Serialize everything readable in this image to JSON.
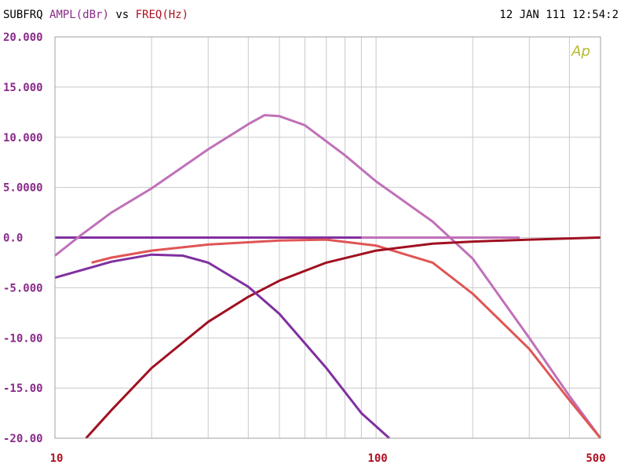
{
  "chart_data": {
    "type": "line",
    "title": [
      "SUBFRQ",
      "AMPL(dBr)",
      "vs",
      "FREQ(Hz)"
    ],
    "timestamp": "12 JAN 111 12:54:2",
    "logo": "Ap",
    "xlog": true,
    "grid": true,
    "xlim": [
      10,
      500
    ],
    "xticks": [
      10,
      100,
      500
    ],
    "xminor": [
      20,
      30,
      40,
      50,
      60,
      70,
      80,
      90,
      200,
      300,
      400
    ],
    "ylim": [
      -20,
      20
    ],
    "yticks": [
      {
        "value": 20,
        "label": "20.000"
      },
      {
        "value": 15,
        "label": "15.000"
      },
      {
        "value": 10,
        "label": "10.000"
      },
      {
        "value": 5,
        "label": "5.0000"
      },
      {
        "value": 0,
        "label": "0.0"
      },
      {
        "value": -5,
        "label": "-5.000"
      },
      {
        "value": -10,
        "label": "-10.00"
      },
      {
        "value": -15,
        "label": "-15.00"
      },
      {
        "value": -20,
        "label": "-20.00"
      }
    ],
    "series": [
      {
        "color": "#8030a0",
        "x": [
          10,
          90
        ],
        "values": [
          0,
          0
        ]
      },
      {
        "color": "#c070b8",
        "x": [
          90,
          280
        ],
        "values": [
          0,
          0
        ]
      },
      {
        "color": "#c070b8",
        "x": [
          10,
          12,
          15,
          20,
          30,
          40,
          45,
          50,
          60,
          80,
          100,
          150,
          200,
          300,
          400,
          500
        ],
        "values": [
          -1.8,
          0.2,
          2.5,
          4.9,
          8.8,
          11.3,
          12.2,
          12.1,
          11.2,
          8.2,
          5.6,
          1.6,
          -2.1,
          -10,
          -15.8,
          -20
        ]
      },
      {
        "color": "#e05555",
        "x": [
          13,
          15,
          20,
          30,
          50,
          70,
          100,
          150,
          200,
          300,
          400,
          500
        ],
        "values": [
          -2.5,
          -2,
          -1.3,
          -0.7,
          -0.3,
          -0.2,
          -0.8,
          -2.5,
          -5.6,
          -11.1,
          -16.2,
          -20
        ]
      },
      {
        "color": "#a01020",
        "x": [
          12.5,
          15,
          20,
          30,
          40,
          50,
          70,
          100,
          150,
          200,
          300,
          500
        ],
        "values": [
          -20,
          -17.2,
          -13,
          -8.4,
          -5.9,
          -4.3,
          -2.5,
          -1.3,
          -0.6,
          -0.4,
          -0.2,
          0
        ]
      },
      {
        "color": "#8030a0",
        "x": [
          10,
          15,
          20,
          25,
          30,
          40,
          50,
          70,
          90,
          110
        ],
        "values": [
          -4,
          -2.4,
          -1.7,
          -1.8,
          -2.5,
          -4.9,
          -7.6,
          -13,
          -17.5,
          -20
        ]
      }
    ]
  }
}
